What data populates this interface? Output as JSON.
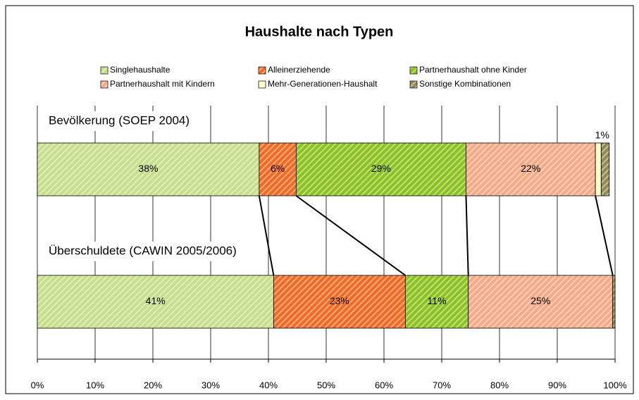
{
  "chart_data": {
    "type": "stacked_barh",
    "title": "Haushalte nach Typen",
    "categories": [
      "Bevölkerung (SOEP 2004)",
      "Überschuldete (CAWIN 2005/2006)"
    ],
    "series": [
      {
        "name": "Singlehaushalte",
        "color": "#c6df8a",
        "values": [
          38.4,
          40.9
        ],
        "value_labels": [
          "38%",
          "41%"
        ]
      },
      {
        "name": "Alleinerziehende",
        "color": "#f26a21",
        "values": [
          6.4,
          22.8
        ],
        "value_labels": [
          "6%",
          "23%"
        ]
      },
      {
        "name": "Partnerhaushalt ohne Kinder",
        "color": "#8cc21e",
        "values": [
          29.4,
          10.9
        ],
        "value_labels": [
          "29%",
          "11%"
        ]
      },
      {
        "name": "Partnerhaushalt mit Kindern",
        "color": "#f6a985",
        "values": [
          22.4,
          25.0
        ],
        "value_labels": [
          "22%",
          "25%"
        ]
      },
      {
        "name": "Mehr-Generationen-Haushalt",
        "color": "#fdfbc0",
        "values": [
          1.0,
          0.0
        ]
      },
      {
        "name": "Sonstige Kombinationen",
        "color": "#8e8a52",
        "values": [
          1.4,
          0.4
        ],
        "value_labels": [
          "1%",
          null
        ]
      }
    ],
    "xlim": [
      0,
      100
    ],
    "xticks": [
      {
        "value": 0,
        "label": "0%"
      },
      {
        "value": 10,
        "label": "10%"
      },
      {
        "value": 20,
        "label": "20%"
      },
      {
        "value": 30,
        "label": "30%"
      },
      {
        "value": 40,
        "label": "40%"
      },
      {
        "value": 50,
        "label": "50%"
      },
      {
        "value": 60,
        "label": "60%"
      },
      {
        "value": 70,
        "label": "70%"
      },
      {
        "value": 80,
        "label": "80%"
      },
      {
        "value": 90,
        "label": "90%"
      },
      {
        "value": 100,
        "label": "100%"
      }
    ],
    "grid": true,
    "legend": "top"
  }
}
